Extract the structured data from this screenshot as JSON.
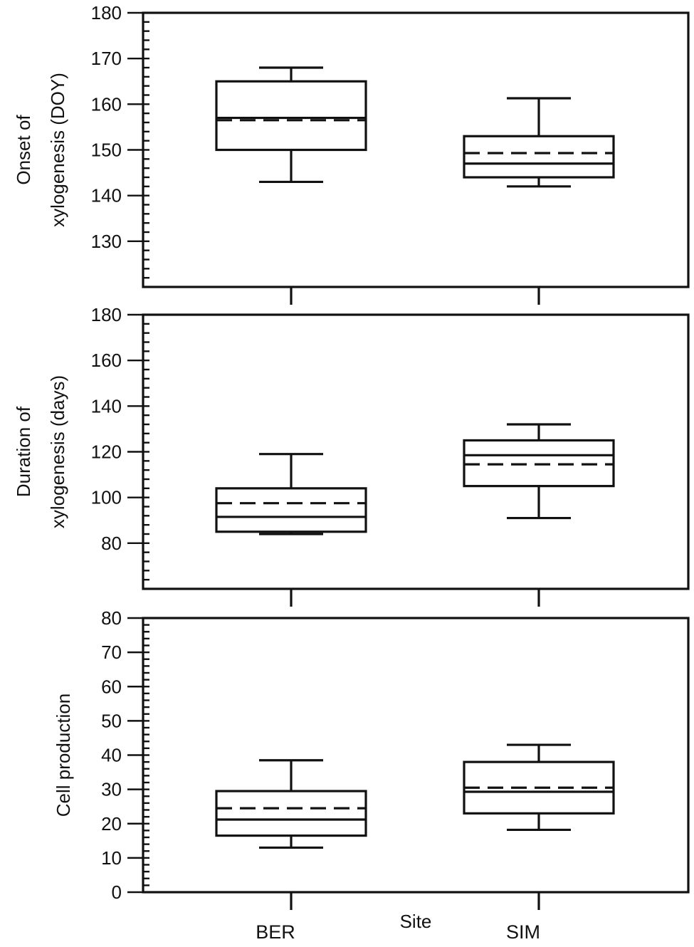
{
  "figure": {
    "xlabel": "Site"
  },
  "chart_data": [
    {
      "type": "box",
      "ylabel_lines": [
        "Onset of",
        "xylogenesis (DOY)"
      ],
      "ylim": [
        120,
        180
      ],
      "yticks": [
        130,
        140,
        150,
        160,
        170,
        180
      ],
      "minor_step": 2,
      "categories": [
        "BER",
        "SIM"
      ],
      "boxes": [
        {
          "category": "BER",
          "whisker_low": 143,
          "q1": 150,
          "median": 157,
          "mean": 156.5,
          "q3": 165,
          "whisker_high": 168
        },
        {
          "category": "SIM",
          "whisker_low": 142,
          "q1": 144,
          "median": 147,
          "mean": 149.3,
          "q3": 153,
          "whisker_high": 161.3
        }
      ]
    },
    {
      "type": "box",
      "ylabel_lines": [
        "Duration of",
        "xylogenesis (days)"
      ],
      "ylim": [
        60,
        180
      ],
      "yticks": [
        80,
        100,
        120,
        140,
        160,
        180
      ],
      "minor_step": 4,
      "categories": [
        "BER",
        "SIM"
      ],
      "boxes": [
        {
          "category": "BER",
          "whisker_low": 84,
          "q1": 85,
          "median": 91.5,
          "mean": 97.5,
          "q3": 104,
          "whisker_high": 119
        },
        {
          "category": "SIM",
          "whisker_low": 91,
          "q1": 105,
          "median": 118.5,
          "mean": 114.5,
          "q3": 125,
          "whisker_high": 132
        }
      ]
    },
    {
      "type": "box",
      "ylabel_lines": [
        "Cell production"
      ],
      "ylim": [
        0,
        80
      ],
      "yticks": [
        0,
        10,
        20,
        30,
        40,
        50,
        60,
        70,
        80
      ],
      "minor_step": 2,
      "categories": [
        "BER",
        "SIM"
      ],
      "boxes": [
        {
          "category": "BER",
          "whisker_low": 13,
          "q1": 16.5,
          "median": 21.2,
          "mean": 24.5,
          "q3": 29.5,
          "whisker_high": 38.5
        },
        {
          "category": "SIM",
          "whisker_low": 18.2,
          "q1": 23,
          "median": 29.3,
          "mean": 30.5,
          "q3": 38,
          "whisker_high": 43
        }
      ]
    }
  ]
}
